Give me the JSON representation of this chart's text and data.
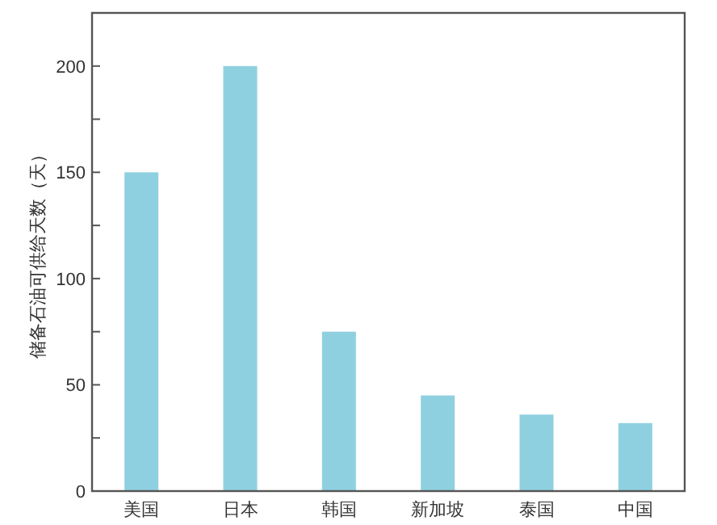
{
  "chart_data": {
    "type": "bar",
    "ylabel": "储备石油可供给天数（天）",
    "categories": [
      "美国",
      "日本",
      "韩国",
      "新加坡",
      "泰国",
      "中国"
    ],
    "values": [
      150,
      200,
      75,
      45,
      36,
      32
    ],
    "color": "#8fd0e0",
    "ylim": [
      0,
      225
    ],
    "yticks": [
      0,
      {
        "value": 25,
        "label": null
      },
      50,
      {
        "value": 75,
        "label": null
      },
      100,
      {
        "value": 125,
        "label": null
      },
      150,
      {
        "value": 175,
        "label": null
      },
      200
    ],
    "grid": false
  }
}
